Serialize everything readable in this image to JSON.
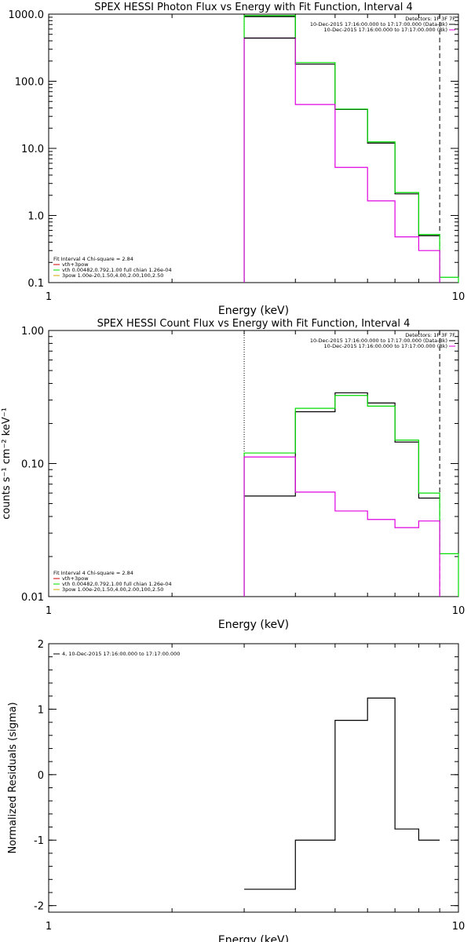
{
  "colors": {
    "data": "#000000",
    "total": "#00dd00",
    "component": "#e000e0",
    "background": "#ffffff"
  },
  "chart_data": [
    {
      "type": "line",
      "step": true,
      "title": "SPEX HESSI Photon Flux vs Energy with Fit Function, Interval 4",
      "xlabel": "Energy (keV)",
      "ylabel": "",
      "xscale": "log",
      "yscale": "log",
      "xlim": [
        1,
        10
      ],
      "ylim": [
        0.1,
        1000
      ],
      "xticks": [
        {
          "v": 1,
          "label": "1"
        },
        {
          "v": 10,
          "label": "10"
        }
      ],
      "yticks": [
        {
          "v": 1000,
          "label": "1000.0"
        },
        {
          "v": 100,
          "label": "100.0"
        },
        {
          "v": 10,
          "label": "10.0"
        },
        {
          "v": 1,
          "label": "1.0"
        },
        {
          "v": 0.1,
          "label": "0.1"
        }
      ],
      "edges": [
        3,
        4,
        5,
        6,
        7,
        8,
        9,
        10
      ],
      "vlines": [
        {
          "x": 3,
          "style": "dotted"
        },
        {
          "x": 9,
          "style": "dashed"
        }
      ],
      "legend_tr": [
        "Detectors: 1F 3F 7F",
        "10-Dec-2015 17:16:00.000 to 17:17:00.000 (Data-Bk)",
        "10-Dec-2015 17:16:00.000 to 17:17:00.000 (Bk)"
      ],
      "legend_bl": [
        "Fit Interval 4   Chi-square = 2.84",
        "vth+3pow",
        "vth 0.00482,0.792,1.00  full chian 1.26e-04",
        "3pow 1.00e-20,1.50,4.00,2.00,100,2.50"
      ],
      "series": [
        {
          "role": "data",
          "values": [
            920,
            180,
            38,
            12,
            2.1,
            0.5,
            null
          ]
        },
        {
          "role": "total",
          "values": [
            950,
            190,
            38.5,
            12.5,
            2.2,
            0.52,
            0.12
          ]
        },
        {
          "role": "component",
          "values": [
            440,
            45,
            5.2,
            1.65,
            0.48,
            0.3,
            null
          ]
        },
        {
          "role": "lower",
          "values": [
            440,
            null,
            null,
            null,
            null,
            null,
            null
          ]
        }
      ]
    },
    {
      "type": "line",
      "step": true,
      "title": "SPEX HESSI Count Flux vs Energy with Fit Function, Interval 4",
      "xlabel": "Energy (keV)",
      "ylabel": "counts s⁻¹ cm⁻² keV⁻¹",
      "xscale": "log",
      "yscale": "log",
      "xlim": [
        1,
        10
      ],
      "ylim": [
        0.01,
        1
      ],
      "xticks": [
        {
          "v": 1,
          "label": "1"
        },
        {
          "v": 10,
          "label": "10"
        }
      ],
      "yticks": [
        {
          "v": 1,
          "label": "1.00"
        },
        {
          "v": 0.1,
          "label": "0.10"
        },
        {
          "v": 0.01,
          "label": "0.01"
        }
      ],
      "edges": [
        3,
        4,
        5,
        6,
        7,
        8,
        9,
        10
      ],
      "vlines": [
        {
          "x": 3,
          "style": "dotted"
        },
        {
          "x": 9,
          "style": "dashed"
        }
      ],
      "legend_tr": [
        "Detectors: 1F 3F 7F",
        "10-Dec-2015 17:16:00.000 to 17:17:00.000 (Data-Bk)",
        "10-Dec-2015 17:16:00.000 to 17:17:00.000 (Bk)"
      ],
      "legend_bl": [
        "Fit Interval 4   Chi-square = 2.84",
        "vth+3pow",
        "vth 0.00482,0.792,1.00  full chian 1.26e-04",
        "3pow 1.00e-20,1.50,4.00,2.00,100,2.50"
      ],
      "series": [
        {
          "role": "data",
          "values": [
            0.057,
            0.245,
            0.34,
            0.285,
            0.145,
            0.055,
            null
          ]
        },
        {
          "role": "total",
          "values": [
            0.12,
            0.26,
            0.325,
            0.27,
            0.15,
            0.06,
            0.021
          ]
        },
        {
          "role": "component",
          "values": [
            0.112,
            0.061,
            0.044,
            0.038,
            0.033,
            0.037,
            null
          ]
        }
      ]
    },
    {
      "type": "line",
      "step": true,
      "title": "",
      "xlabel": "Energy (keV)",
      "ylabel": "Normalized Residuals (sigma)",
      "xscale": "log",
      "yscale": "linear",
      "xlim": [
        1,
        10
      ],
      "ylim": [
        -2.1,
        2
      ],
      "xticks": [
        {
          "v": 1,
          "label": "1"
        },
        {
          "v": 10,
          "label": "10"
        }
      ],
      "yticks": [
        {
          "v": 2,
          "label": "2"
        },
        {
          "v": 1,
          "label": "1"
        },
        {
          "v": 0,
          "label": "0"
        },
        {
          "v": -1,
          "label": "-1"
        },
        {
          "v": -2,
          "label": "-2"
        }
      ],
      "edges": [
        3,
        4,
        5,
        6,
        7,
        8,
        9
      ],
      "legend_tl": [
        "4, 10-Dec-2015 17:16:00.000 to 17:17:00.000"
      ],
      "series": [
        {
          "role": "data",
          "values": [
            -1.75,
            -1.0,
            0.83,
            1.17,
            -0.83,
            -1.0
          ]
        }
      ]
    }
  ]
}
